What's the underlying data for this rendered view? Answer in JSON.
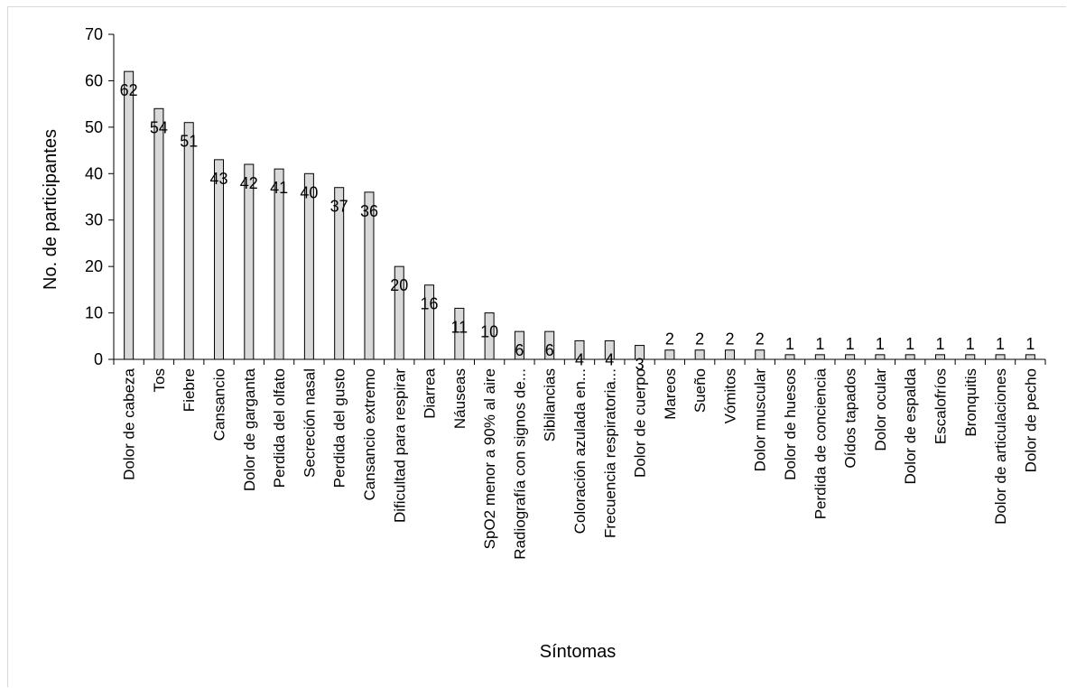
{
  "chart_data": {
    "type": "bar",
    "title": "",
    "xlabel": "Síntomas",
    "ylabel": "No. de participantes",
    "ylim": [
      0,
      70
    ],
    "yticks": [
      0,
      10,
      20,
      30,
      40,
      50,
      60,
      70
    ],
    "grid": false,
    "legend": "none",
    "bar_color": "#d9d9d9",
    "bar_stroke": "#000000",
    "categories": [
      "Dolor de cabeza",
      "Tos",
      "Fiebre",
      "Cansancio",
      "Dolor de garganta",
      "Perdida del olfato",
      "Secreción nasal",
      "Perdida del gusto",
      "Cansancio extremo",
      "Dificultad para respirar",
      "Diarrea",
      "Náuseas",
      "SpO2 menor a 90% al aire",
      "Radiografía con signos de...",
      "Sibilancias",
      "Coloración azulada en...",
      "Frecuencia respiratoria...",
      "Dolor de cuerpo",
      "Mareos",
      "Sueño",
      "Vómitos",
      "Dolor muscular",
      "Dolor de huesos",
      "Perdida de conciencia",
      "Oídos tapados",
      "Dolor ocular",
      "Dolor de espalda",
      "Escalofríos",
      "Bronquitis",
      "Dolor de articulaciones",
      "Dolor de pecho"
    ],
    "values": [
      62,
      54,
      51,
      43,
      42,
      41,
      40,
      37,
      36,
      20,
      16,
      11,
      10,
      6,
      6,
      4,
      4,
      3,
      2,
      2,
      2,
      2,
      1,
      1,
      1,
      1,
      1,
      1,
      1,
      1,
      1
    ]
  }
}
